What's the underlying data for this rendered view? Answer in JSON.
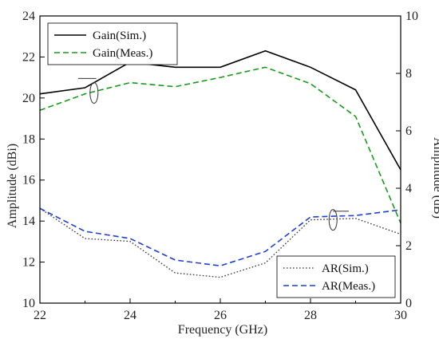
{
  "chart_data": {
    "type": "line",
    "xlabel": "Frequency (GHz)",
    "ylabel_left": "Amplitude (dBi)",
    "ylabel_right": "Amplitude (dB)",
    "xlim": [
      22,
      30
    ],
    "ylim_left": [
      10,
      24
    ],
    "ylim_right": [
      0,
      10
    ],
    "x_ticks": [
      22,
      24,
      26,
      28,
      30
    ],
    "y_left_ticks": [
      10,
      12,
      14,
      16,
      18,
      20,
      22,
      24
    ],
    "y_right_ticks": [
      0,
      2,
      4,
      6,
      8,
      10
    ],
    "x_tick_labels": [
      "22",
      "24",
      "26",
      "28",
      "30"
    ],
    "y_left_tick_labels": [
      "10",
      "12",
      "14",
      "16",
      "18",
      "20",
      "22",
      "24"
    ],
    "y_right_tick_labels": [
      "0",
      "2",
      "4",
      "6",
      "8",
      "10"
    ],
    "grid": false,
    "series": [
      {
        "name": "Gain(Sim.)",
        "axis": "left",
        "color": "#000000",
        "style": "solid",
        "x": [
          22,
          23,
          24,
          25,
          26,
          27,
          28,
          29,
          30
        ],
        "values": [
          20.2,
          20.5,
          21.75,
          21.5,
          21.5,
          22.3,
          21.5,
          20.4,
          16.5
        ]
      },
      {
        "name": "Gain(Meas.)",
        "axis": "left",
        "color": "#1a9a1a",
        "style": "dashed",
        "x": [
          22,
          23,
          24,
          25,
          26,
          27,
          28,
          29,
          30
        ],
        "values": [
          19.4,
          20.2,
          20.75,
          20.55,
          21.0,
          21.5,
          20.7,
          19.1,
          13.9
        ]
      },
      {
        "name": "AR(Sim.)",
        "axis": "right",
        "color": "#333333",
        "style": "dotted",
        "x": [
          22,
          23,
          24,
          25,
          26,
          27,
          28,
          29,
          30
        ],
        "values": [
          3.3,
          2.25,
          2.15,
          1.05,
          0.9,
          1.4,
          2.9,
          2.95,
          2.4
        ]
      },
      {
        "name": "AR(Meas.)",
        "axis": "right",
        "color": "#1f3fd6",
        "style": "dashed",
        "x": [
          22,
          23,
          24,
          25,
          26,
          27,
          28,
          29,
          30
        ],
        "values": [
          3.3,
          2.5,
          2.25,
          1.5,
          1.3,
          1.8,
          3.0,
          3.05,
          3.25
        ]
      }
    ],
    "legend_gain_placement": "top-left",
    "legend_ar_placement": "bottom-right"
  }
}
